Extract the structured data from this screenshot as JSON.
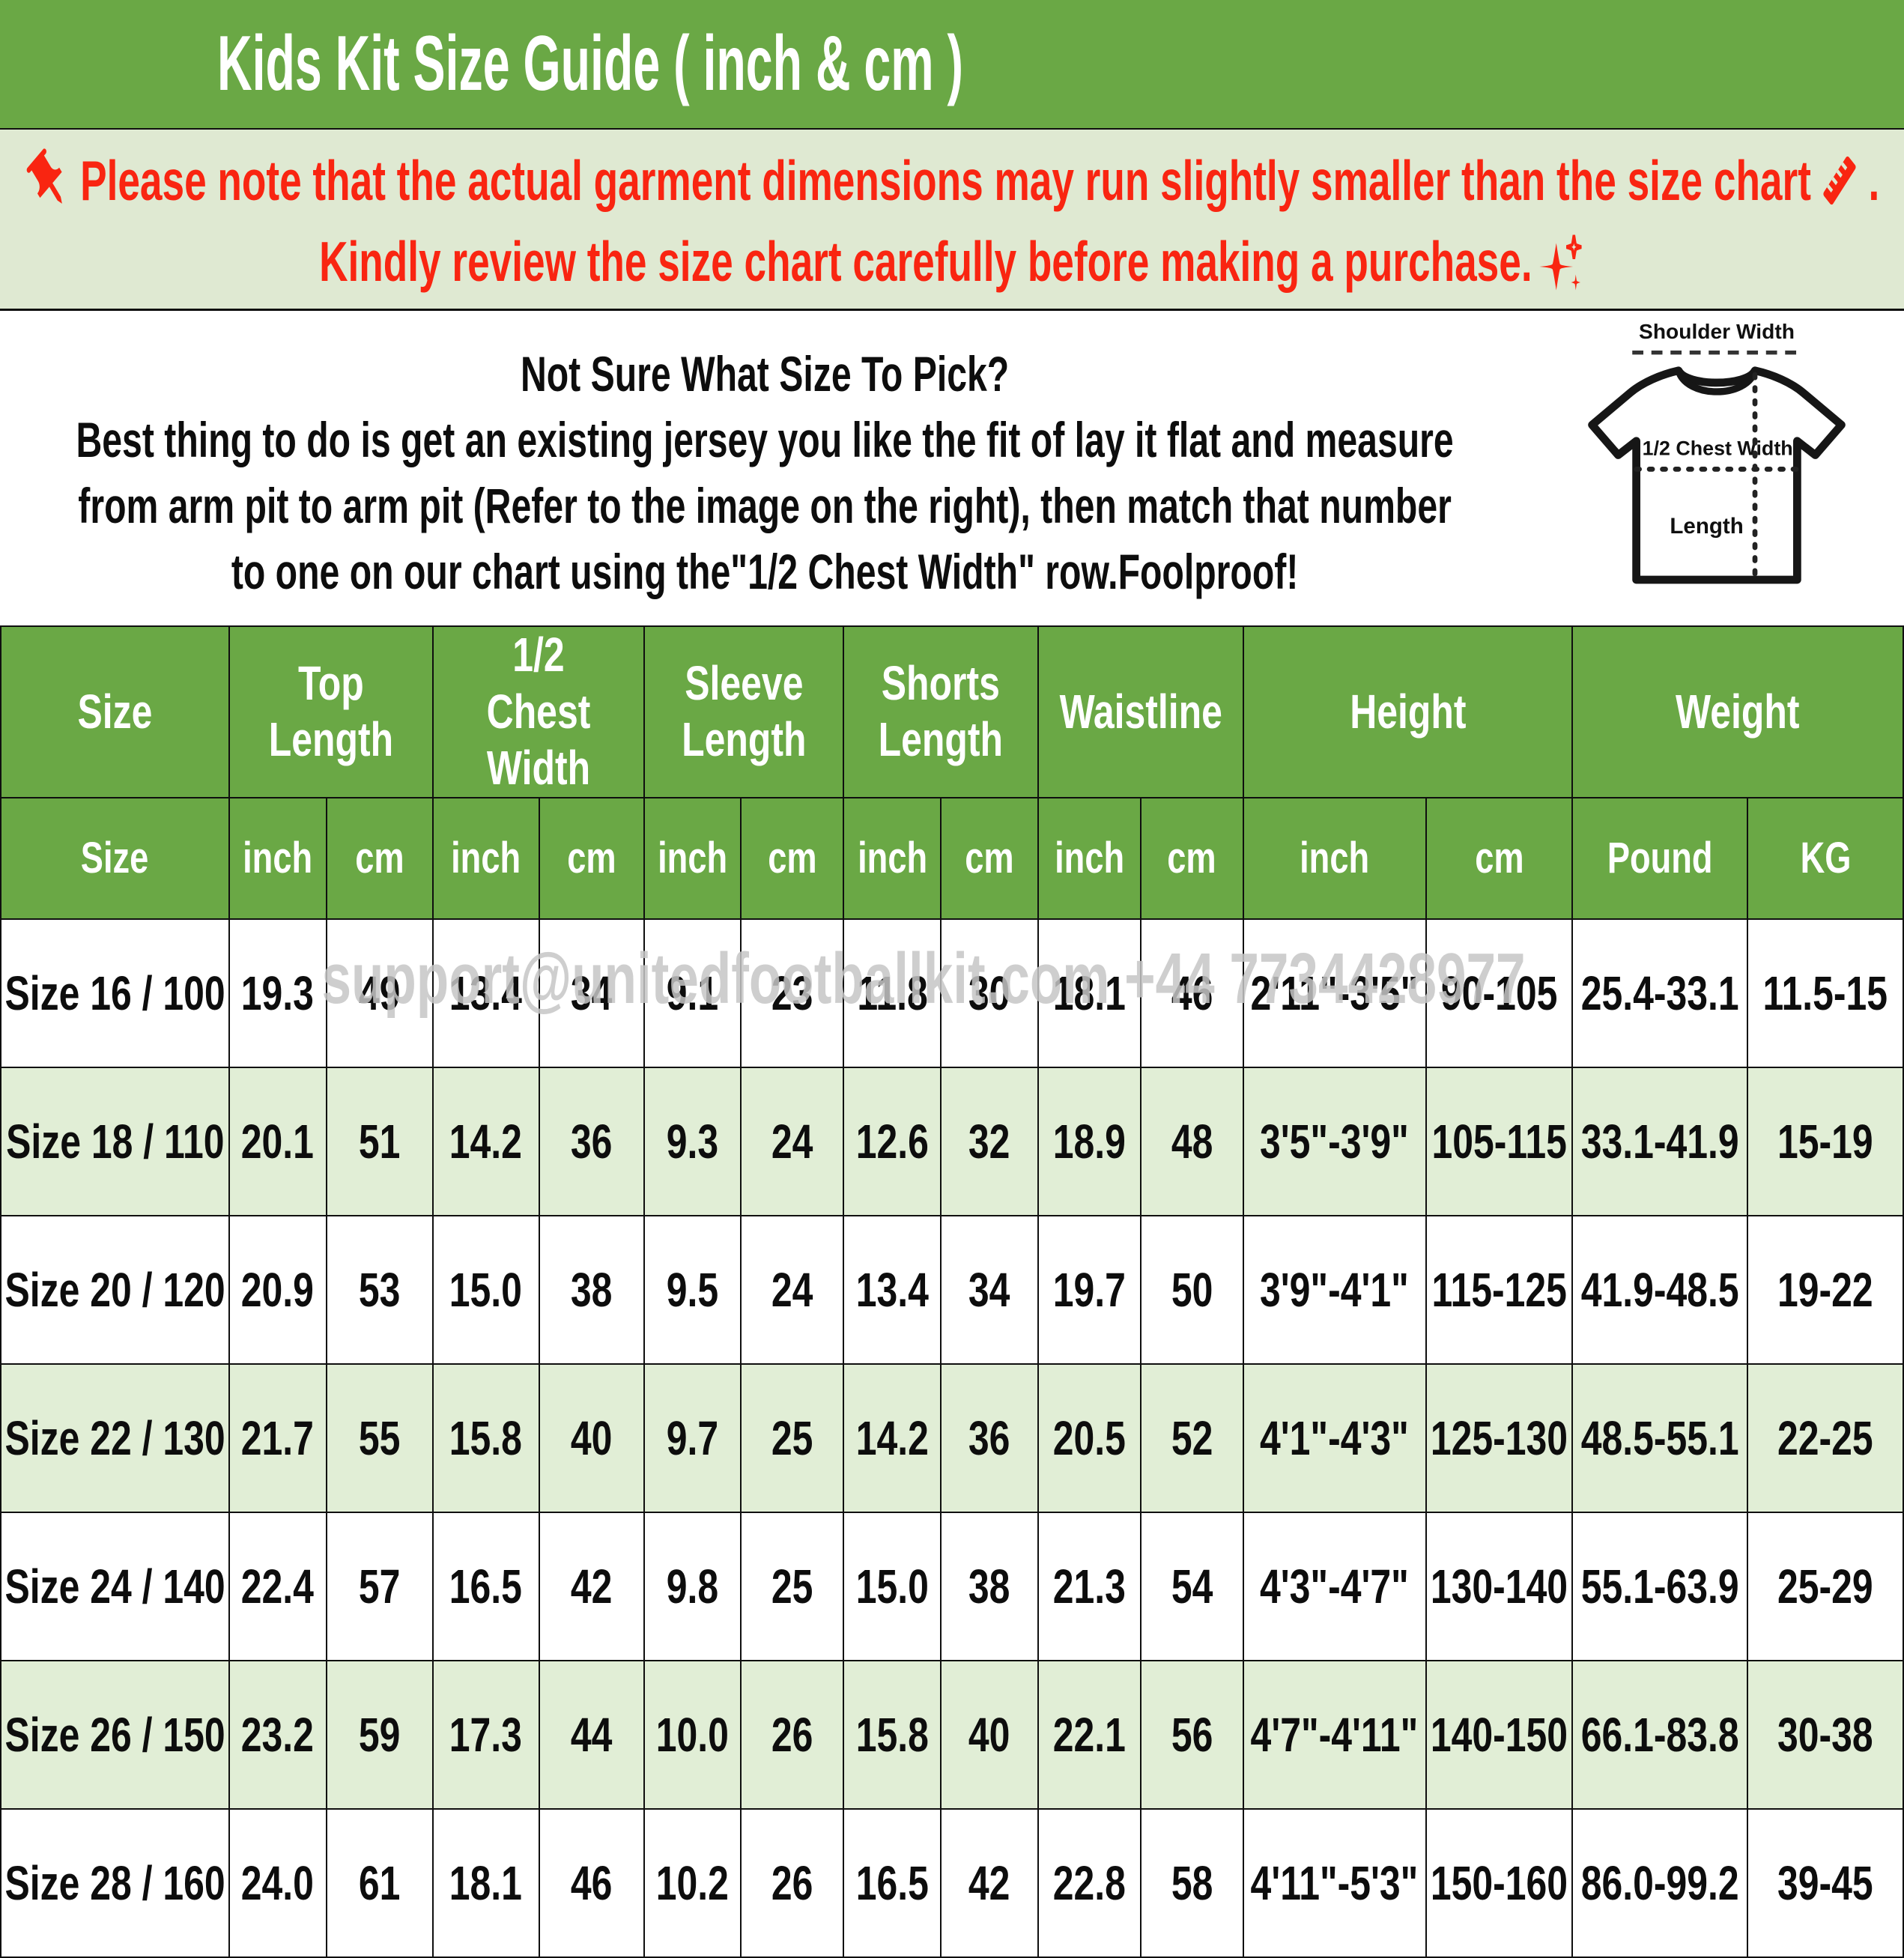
{
  "title": "Kids Kit Size Guide ( inch & cm )",
  "notice": {
    "line1_text": "Please note that the actual garment dimensions may run slightly smaller than the size chart",
    "line1_suffix": " .",
    "line2_text": "Kindly review the size chart carefully before making a purchase.",
    "text_color": "#f92511",
    "bg_color": "#dfe9d2"
  },
  "sizing_help": {
    "line1": "Not Sure What Size To Pick?",
    "line2": "Best thing to do is get an existing jersey you like the fit of lay it flat and measure",
    "line3": "from arm pit to arm pit (Refer to the image on the right), then match that number",
    "line4": "to one on our chart using the\"1/2 Chest Width\" row.Foolproof!"
  },
  "tshirt_diagram": {
    "shoulder_label": "Shoulder Width",
    "chest_label": "1/2 Chest Width",
    "length_label": "Length"
  },
  "watermark": {
    "text": "support@unitedfootballkit.com +44 7734428977"
  },
  "colors": {
    "header_green": "#6aa845",
    "row_alt_green": "#e1eed6",
    "note_bg": "#dfe9d2",
    "note_red": "#f92511"
  },
  "table": {
    "header_groups": [
      {
        "label": "Size",
        "colspan": 1
      },
      {
        "label": "Top Length",
        "colspan": 2
      },
      {
        "label": "1/2 Chest Width",
        "colspan": 2
      },
      {
        "label": "Sleeve Length",
        "colspan": 2
      },
      {
        "label": "Shorts Length",
        "colspan": 2
      },
      {
        "label": "Waistline",
        "colspan": 2
      },
      {
        "label": "Height",
        "colspan": 2
      },
      {
        "label": "Weight",
        "colspan": 2
      }
    ],
    "subheaders": [
      "Size",
      "inch",
      "cm",
      "inch",
      "cm",
      "inch",
      "cm",
      "inch",
      "cm",
      "inch",
      "cm",
      "inch",
      "cm",
      "Pound",
      "KG"
    ],
    "col_widths_pct": [
      12.0,
      5.11,
      5.59,
      5.59,
      5.51,
      5.11,
      5.39,
      5.11,
      5.11,
      5.39,
      5.39,
      9.6,
      7.71,
      9.2,
      8.18
    ],
    "rows": [
      {
        "size": "Size 16 / 100",
        "values": [
          "19.3",
          "49",
          "13.4",
          "34",
          "9.1",
          "23",
          "11.8",
          "30",
          "18.1",
          "46",
          "2'11\"-3'5\"",
          "90-105",
          "25.4-33.1",
          "11.5-15"
        ]
      },
      {
        "size": "Size 18 / 110",
        "values": [
          "20.1",
          "51",
          "14.2",
          "36",
          "9.3",
          "24",
          "12.6",
          "32",
          "18.9",
          "48",
          "3'5\"-3'9\"",
          "105-115",
          "33.1-41.9",
          "15-19"
        ]
      },
      {
        "size": "Size 20 / 120",
        "values": [
          "20.9",
          "53",
          "15.0",
          "38",
          "9.5",
          "24",
          "13.4",
          "34",
          "19.7",
          "50",
          "3'9\"-4'1\"",
          "115-125",
          "41.9-48.5",
          "19-22"
        ]
      },
      {
        "size": "Size 22 / 130",
        "values": [
          "21.7",
          "55",
          "15.8",
          "40",
          "9.7",
          "25",
          "14.2",
          "36",
          "20.5",
          "52",
          "4'1\"-4'3\"",
          "125-130",
          "48.5-55.1",
          "22-25"
        ]
      },
      {
        "size": "Size 24 / 140",
        "values": [
          "22.4",
          "57",
          "16.5",
          "42",
          "9.8",
          "25",
          "15.0",
          "38",
          "21.3",
          "54",
          "4'3\"-4'7\"",
          "130-140",
          "55.1-63.9",
          "25-29"
        ]
      },
      {
        "size": "Size 26 / 150",
        "values": [
          "23.2",
          "59",
          "17.3",
          "44",
          "10.0",
          "26",
          "15.8",
          "40",
          "22.1",
          "56",
          "4'7\"-4'11\"",
          "140-150",
          "66.1-83.8",
          "30-38"
        ]
      },
      {
        "size": "Size 28 / 160",
        "values": [
          "24.0",
          "61",
          "18.1",
          "46",
          "10.2",
          "26",
          "16.5",
          "42",
          "22.8",
          "58",
          "4'11\"-5'3\"",
          "150-160",
          "86.0-99.2",
          "39-45"
        ]
      }
    ]
  }
}
